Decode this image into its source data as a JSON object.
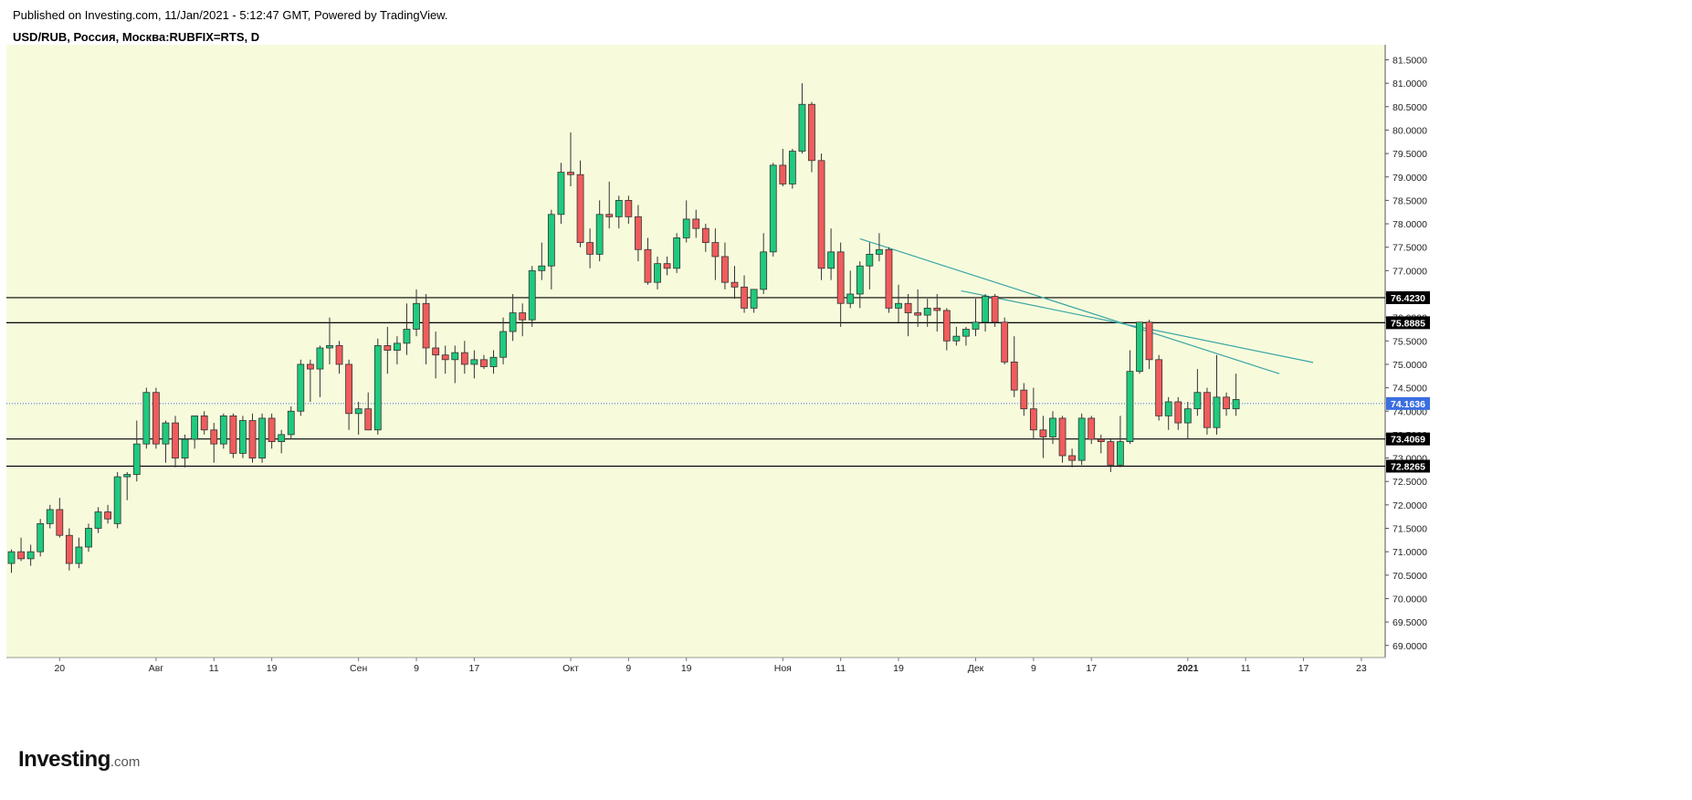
{
  "header": {
    "published": "Published on Investing.com, 11/Jan/2021 - 5:12:47 GMT, Powered by TradingView.",
    "symbol": "USD/RUB, Россия, Москва:RUBFIX=RTS, D"
  },
  "logo": {
    "main": "Investing",
    "suffix": ".com"
  },
  "colors": {
    "plot_bg": "#f7fbdc",
    "up": "#1fca7e",
    "down": "#f05c5c",
    "wick": "#333333",
    "trendline": "#3aa6a4",
    "level_line": "#000000",
    "current_price_line": "#3b6fe0",
    "current_price_label": "#3b6fe0"
  },
  "chart_data": {
    "type": "candlestick",
    "title": "USD/RUB, Россия, Москва:RUBFIX=RTS, D",
    "ylim": [
      68.8,
      81.75
    ],
    "y_ticks": [
      "69.0000",
      "69.5000",
      "70.0000",
      "70.5000",
      "71.0000",
      "71.5000",
      "72.0000",
      "72.5000",
      "73.0000",
      "73.5000",
      "74.0000",
      "74.5000",
      "75.0000",
      "75.5000",
      "76.0000",
      "76.5000",
      "77.0000",
      "77.5000",
      "78.0000",
      "78.5000",
      "79.0000",
      "79.5000",
      "80.0000",
      "80.5000",
      "81.0000",
      "81.5000"
    ],
    "x_ticks": [
      {
        "label": "20",
        "index": 5
      },
      {
        "label": "Авг",
        "index": 15
      },
      {
        "label": "11",
        "index": 21
      },
      {
        "label": "19",
        "index": 27
      },
      {
        "label": "Сен",
        "index": 36
      },
      {
        "label": "9",
        "index": 42
      },
      {
        "label": "17",
        "index": 48
      },
      {
        "label": "Окт",
        "index": 58
      },
      {
        "label": "9",
        "index": 64
      },
      {
        "label": "19",
        "index": 70
      },
      {
        "label": "Ноя",
        "index": 80
      },
      {
        "label": "11",
        "index": 86
      },
      {
        "label": "19",
        "index": 92
      },
      {
        "label": "Дек",
        "index": 100
      },
      {
        "label": "9",
        "index": 106
      },
      {
        "label": "17",
        "index": 112
      },
      {
        "label": "2021",
        "index": 122
      },
      {
        "label": "11",
        "index": 128
      },
      {
        "label": "17",
        "index": 134
      },
      {
        "label": "23",
        "index": 140
      }
    ],
    "horizontal_levels": [
      {
        "value": 76.423,
        "label": "76.4230"
      },
      {
        "value": 75.8885,
        "label": "75.8885"
      },
      {
        "value": 73.4069,
        "label": "73.4069"
      },
      {
        "value": 72.8265,
        "label": "72.8265"
      }
    ],
    "current_price": {
      "value": 74.1636,
      "label": "74.1636"
    },
    "trendlines": [
      {
        "from": {
          "index": 88,
          "value": 77.68
        },
        "to": {
          "index": 131.5,
          "value": 74.8
        }
      },
      {
        "from": {
          "index": 98.5,
          "value": 76.57
        },
        "to": {
          "index": 135,
          "value": 75.04
        }
      }
    ],
    "candles": [
      [
        70.75,
        71.05,
        70.55,
        71.0
      ],
      [
        71.0,
        71.3,
        70.8,
        70.85
      ],
      [
        70.85,
        71.15,
        70.7,
        71.0
      ],
      [
        71.0,
        71.7,
        70.9,
        71.6
      ],
      [
        71.6,
        72.0,
        71.5,
        71.9
      ],
      [
        71.9,
        72.15,
        71.3,
        71.35
      ],
      [
        71.35,
        71.5,
        70.6,
        70.75
      ],
      [
        70.75,
        71.3,
        70.65,
        71.1
      ],
      [
        71.1,
        71.6,
        71.0,
        71.5
      ],
      [
        71.5,
        71.95,
        71.4,
        71.85
      ],
      [
        71.85,
        72.0,
        71.6,
        71.7
      ],
      [
        71.6,
        72.7,
        71.5,
        72.6
      ],
      [
        72.6,
        72.7,
        72.1,
        72.65
      ],
      [
        72.65,
        73.8,
        72.5,
        73.3
      ],
      [
        73.3,
        74.5,
        73.2,
        74.4
      ],
      [
        74.4,
        74.5,
        73.2,
        73.3
      ],
      [
        73.3,
        73.8,
        72.9,
        73.75
      ],
      [
        73.75,
        73.9,
        72.8,
        73.0
      ],
      [
        73.0,
        73.5,
        72.8,
        73.4
      ],
      [
        73.4,
        73.9,
        73.2,
        73.9
      ],
      [
        73.9,
        74.0,
        73.5,
        73.6
      ],
      [
        73.6,
        73.75,
        72.9,
        73.3
      ],
      [
        73.3,
        73.95,
        73.2,
        73.9
      ],
      [
        73.9,
        73.95,
        73.0,
        73.1
      ],
      [
        73.1,
        73.9,
        73.0,
        73.8
      ],
      [
        73.8,
        73.95,
        72.9,
        73.0
      ],
      [
        73.0,
        73.95,
        72.9,
        73.85
      ],
      [
        73.85,
        73.95,
        73.2,
        73.35
      ],
      [
        73.35,
        73.6,
        73.1,
        73.5
      ],
      [
        73.5,
        74.1,
        73.4,
        74.0
      ],
      [
        74.0,
        75.1,
        73.9,
        75.0
      ],
      [
        75.0,
        75.1,
        74.2,
        74.9
      ],
      [
        74.9,
        75.4,
        74.3,
        75.35
      ],
      [
        75.35,
        76.0,
        75.0,
        75.4
      ],
      [
        75.4,
        75.5,
        74.8,
        75.0
      ],
      [
        75.0,
        75.1,
        73.6,
        73.95
      ],
      [
        73.95,
        74.2,
        73.5,
        74.05
      ],
      [
        74.05,
        74.4,
        73.6,
        73.6
      ],
      [
        73.6,
        75.55,
        73.5,
        75.4
      ],
      [
        75.4,
        75.8,
        74.8,
        75.3
      ],
      [
        75.3,
        75.6,
        75.0,
        75.45
      ],
      [
        75.45,
        76.3,
        75.2,
        75.75
      ],
      [
        75.75,
        76.6,
        75.6,
        76.3
      ],
      [
        76.3,
        76.5,
        75.0,
        75.35
      ],
      [
        75.35,
        75.7,
        74.7,
        75.2
      ],
      [
        75.2,
        75.4,
        74.8,
        75.1
      ],
      [
        75.1,
        75.4,
        74.6,
        75.25
      ],
      [
        75.25,
        75.5,
        74.8,
        75.0
      ],
      [
        75.0,
        75.3,
        74.7,
        75.1
      ],
      [
        75.1,
        75.2,
        74.9,
        74.95
      ],
      [
        74.95,
        75.3,
        74.8,
        75.15
      ],
      [
        75.15,
        76.0,
        75.0,
        75.7
      ],
      [
        75.7,
        76.5,
        75.5,
        76.1
      ],
      [
        76.1,
        76.3,
        75.6,
        75.95
      ],
      [
        75.95,
        77.1,
        75.8,
        77.0
      ],
      [
        77.0,
        77.6,
        76.8,
        77.1
      ],
      [
        77.1,
        78.3,
        76.6,
        78.2
      ],
      [
        78.2,
        79.3,
        78.0,
        79.1
      ],
      [
        79.1,
        79.95,
        78.8,
        79.05
      ],
      [
        79.05,
        79.35,
        77.5,
        77.6
      ],
      [
        77.6,
        77.9,
        77.05,
        77.35
      ],
      [
        77.35,
        78.5,
        77.2,
        78.2
      ],
      [
        78.2,
        78.9,
        77.9,
        78.15
      ],
      [
        78.15,
        78.6,
        77.9,
        78.5
      ],
      [
        78.5,
        78.6,
        78.0,
        78.15
      ],
      [
        78.15,
        78.4,
        77.2,
        77.45
      ],
      [
        77.45,
        77.7,
        76.7,
        76.75
      ],
      [
        76.75,
        77.3,
        76.6,
        77.15
      ],
      [
        77.15,
        77.3,
        76.9,
        77.05
      ],
      [
        77.05,
        77.8,
        76.95,
        77.7
      ],
      [
        77.7,
        78.5,
        77.6,
        78.1
      ],
      [
        78.1,
        78.3,
        77.7,
        77.9
      ],
      [
        77.9,
        78.0,
        77.4,
        77.6
      ],
      [
        77.6,
        77.9,
        76.8,
        77.3
      ],
      [
        77.3,
        77.6,
        76.6,
        76.75
      ],
      [
        76.75,
        77.1,
        76.4,
        76.65
      ],
      [
        76.65,
        76.9,
        76.1,
        76.2
      ],
      [
        76.2,
        76.6,
        76.1,
        76.6
      ],
      [
        76.6,
        77.8,
        76.5,
        77.4
      ],
      [
        77.4,
        79.3,
        77.3,
        79.25
      ],
      [
        79.25,
        79.6,
        78.8,
        78.85
      ],
      [
        78.85,
        79.6,
        78.75,
        79.55
      ],
      [
        79.55,
        81.0,
        79.5,
        80.55
      ],
      [
        80.55,
        80.6,
        79.1,
        79.35
      ],
      [
        79.35,
        79.5,
        76.8,
        77.05
      ],
      [
        77.05,
        77.9,
        76.8,
        77.4
      ],
      [
        77.4,
        77.6,
        75.8,
        76.3
      ],
      [
        76.3,
        77.0,
        76.2,
        76.5
      ],
      [
        76.5,
        77.2,
        76.2,
        77.1
      ],
      [
        77.1,
        77.6,
        76.6,
        77.35
      ],
      [
        77.35,
        77.8,
        77.2,
        77.45
      ],
      [
        77.45,
        77.5,
        76.1,
        76.2
      ],
      [
        76.2,
        76.7,
        75.9,
        76.3
      ],
      [
        76.3,
        76.5,
        75.6,
        76.1
      ],
      [
        76.1,
        76.6,
        75.8,
        76.05
      ],
      [
        76.05,
        76.4,
        75.8,
        76.2
      ],
      [
        76.2,
        76.5,
        75.7,
        76.15
      ],
      [
        76.15,
        76.2,
        75.3,
        75.5
      ],
      [
        75.5,
        75.8,
        75.4,
        75.6
      ],
      [
        75.6,
        75.8,
        75.4,
        75.75
      ],
      [
        75.75,
        76.4,
        75.6,
        75.9
      ],
      [
        75.9,
        76.5,
        75.7,
        76.45
      ],
      [
        76.45,
        76.5,
        75.8,
        75.9
      ],
      [
        75.9,
        76.0,
        75.0,
        75.05
      ],
      [
        75.05,
        75.6,
        74.3,
        74.45
      ],
      [
        74.45,
        74.6,
        73.9,
        74.05
      ],
      [
        74.05,
        74.5,
        73.4,
        73.6
      ],
      [
        73.6,
        73.9,
        73.0,
        73.45
      ],
      [
        73.45,
        74.0,
        73.3,
        73.85
      ],
      [
        73.85,
        73.9,
        72.9,
        73.05
      ],
      [
        73.05,
        73.2,
        72.8,
        72.95
      ],
      [
        72.95,
        73.95,
        72.85,
        73.85
      ],
      [
        73.85,
        73.9,
        73.3,
        73.4
      ],
      [
        73.4,
        73.5,
        73.1,
        73.35
      ],
      [
        73.35,
        73.4,
        72.7,
        72.85
      ],
      [
        72.85,
        73.9,
        72.8,
        73.35
      ],
      [
        73.35,
        75.3,
        73.3,
        74.85
      ],
      [
        74.85,
        75.9,
        74.8,
        75.9
      ],
      [
        75.9,
        75.95,
        74.9,
        75.1
      ],
      [
        75.1,
        75.2,
        73.8,
        73.9
      ],
      [
        73.9,
        74.3,
        73.6,
        74.2
      ],
      [
        74.2,
        74.3,
        73.6,
        73.75
      ],
      [
        73.75,
        74.2,
        73.4,
        74.05
      ],
      [
        74.05,
        74.9,
        73.9,
        74.4
      ],
      [
        74.4,
        74.5,
        73.5,
        73.65
      ],
      [
        73.65,
        75.2,
        73.5,
        74.3
      ],
      [
        74.3,
        74.4,
        73.9,
        74.05
      ],
      [
        74.05,
        74.8,
        73.9,
        74.25
      ]
    ]
  }
}
